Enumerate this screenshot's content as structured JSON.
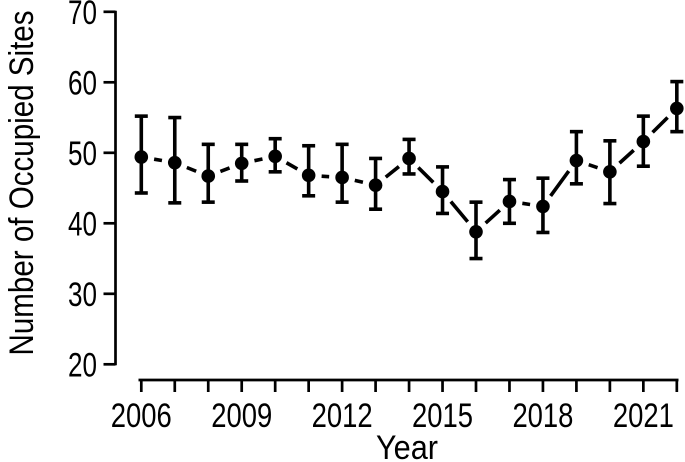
{
  "chart_data": {
    "type": "line",
    "title": "",
    "xlabel": "Year",
    "ylabel": "Number of Occupied Sites",
    "x": [
      2006,
      2007,
      2008,
      2009,
      2010,
      2011,
      2012,
      2013,
      2014,
      2015,
      2016,
      2017,
      2018,
      2019,
      2020,
      2021,
      2022
    ],
    "series": [
      {
        "name": "occupied-sites",
        "values": [
          49.4,
          48.6,
          46.7,
          48.5,
          49.5,
          46.8,
          46.5,
          45.4,
          49.2,
          44.5,
          38.8,
          43.1,
          42.4,
          48.9,
          47.3,
          51.6,
          56.3
        ],
        "error_low": [
          44.3,
          42.9,
          43.0,
          46.0,
          47.3,
          43.9,
          43.0,
          42.0,
          47.0,
          41.4,
          35.0,
          40.0,
          38.7,
          45.6,
          42.8,
          48.1,
          53.0
        ],
        "error_high": [
          55.2,
          55.0,
          51.2,
          51.2,
          52.0,
          51.0,
          51.2,
          49.2,
          51.9,
          48.0,
          43.0,
          46.2,
          46.4,
          53.0,
          51.7,
          55.2,
          60.1
        ]
      }
    ],
    "xlim": [
      2006,
      2022
    ],
    "ylim": [
      20,
      70
    ],
    "yticks": [
      20,
      30,
      40,
      50,
      60,
      70
    ],
    "ytick_labels": [
      "20",
      "30",
      "40",
      "50",
      "60",
      "70"
    ],
    "xticks_labeled": [
      2006,
      2009,
      2012,
      2015,
      2018,
      2021
    ],
    "xtick_labels": [
      "2006",
      "2009",
      "2012",
      "2015",
      "2018",
      "2021"
    ],
    "grid": false,
    "legend": "none",
    "marker": "filled-circle",
    "line_style": "solid-segments-with-gaps",
    "error_bars": true,
    "color": "#000000",
    "background": "#ffffff"
  }
}
